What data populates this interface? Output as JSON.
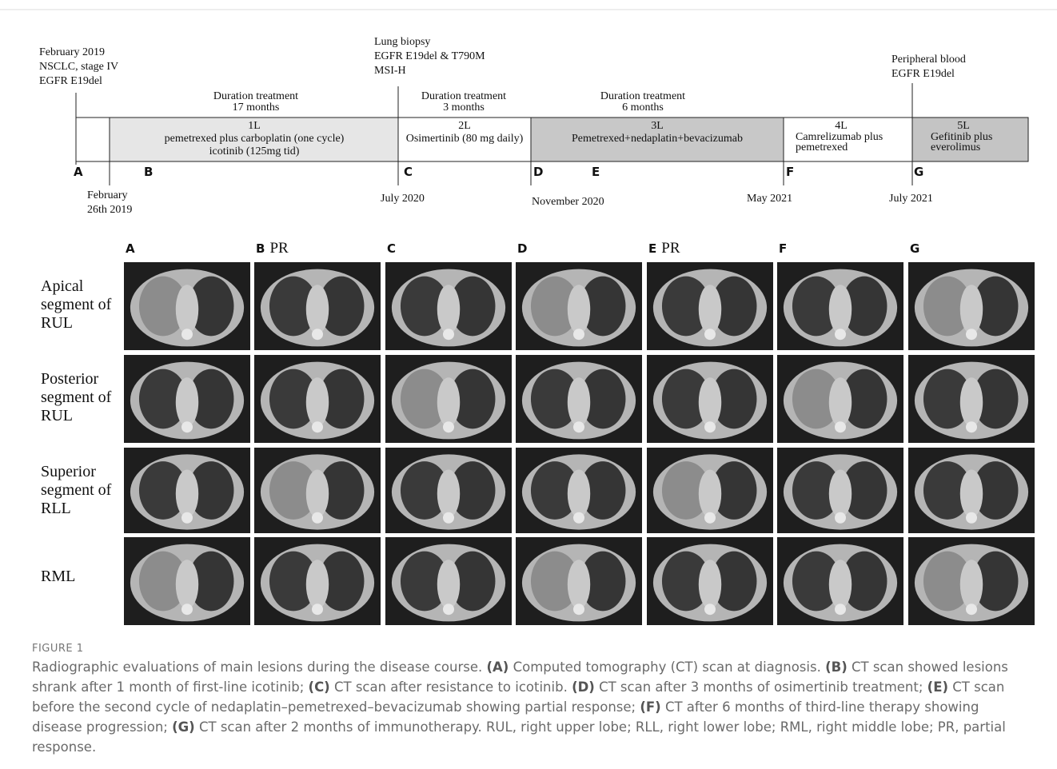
{
  "timeline": {
    "events": [
      {
        "lines": [
          "February 2019",
          "NSCLC, stage IV",
          "EGFR E19del"
        ]
      },
      {
        "lines": [
          "Lung biopsy",
          "EGFR E19del & T790M",
          "MSI-H"
        ]
      },
      {
        "lines": [
          "Peripheral blood",
          "EGFR E19del"
        ]
      }
    ],
    "durations": [
      {
        "lines": [
          "Duration treatment",
          "17 months"
        ]
      },
      {
        "lines": [
          "Duration treatment",
          "3 months"
        ]
      },
      {
        "lines": [
          "Duration treatment",
          "6 months"
        ]
      }
    ],
    "therapy_lines": [
      {
        "label": "1L",
        "lines": [
          "pemetrexed  plus carboplatin (one cycle)",
          "icotinib (125mg tid)"
        ]
      },
      {
        "label": "2L",
        "lines": [
          "Osimertinib (80 mg daily)"
        ]
      },
      {
        "label": "3L",
        "lines": [
          "Pemetrexed+nedaplatin+bevacizumab"
        ]
      },
      {
        "label": "4L",
        "lines": [
          "Camrelizumab plus",
          "pemetrexed"
        ]
      },
      {
        "label": "5L",
        "lines": [
          "Gefitinib plus",
          "everolimus"
        ]
      }
    ],
    "markers": [
      "A",
      "B",
      "C",
      "D",
      "E",
      "F",
      "G"
    ],
    "dates": [
      {
        "lines": [
          "February",
          "26th  2019"
        ]
      },
      {
        "lines": [
          "July  2020"
        ]
      },
      {
        "lines": [
          "November  2020"
        ]
      },
      {
        "lines": [
          "May  2021"
        ]
      },
      {
        "lines": [
          "July  2021"
        ]
      }
    ]
  },
  "scan_grid": {
    "columns": [
      {
        "letter": "A"
      },
      {
        "letter": "B",
        "note": "PR"
      },
      {
        "letter": "C"
      },
      {
        "letter": "D"
      },
      {
        "letter": "E",
        "note": "PR"
      },
      {
        "letter": "F"
      },
      {
        "letter": "G"
      }
    ],
    "rows": [
      {
        "lines": [
          "Apical",
          "segment of",
          "RUL"
        ]
      },
      {
        "lines": [
          "Posterior",
          "segment of",
          "RUL"
        ]
      },
      {
        "lines": [
          "Superior",
          "segment of",
          "RLL"
        ]
      },
      {
        "lines": [
          "RML"
        ]
      }
    ]
  },
  "caption": {
    "label": "FIGURE 1",
    "segments": [
      {
        "text": "Radiographic evaluations of main lesions during the disease course. ",
        "bold": false
      },
      {
        "text": "(A)",
        "bold": true
      },
      {
        "text": " Computed tomography (CT) scan at diagnosis. ",
        "bold": false
      },
      {
        "text": "(B)",
        "bold": true
      },
      {
        "text": " CT scan showed lesions shrank after 1 month of first-line icotinib; ",
        "bold": false
      },
      {
        "text": "(C)",
        "bold": true
      },
      {
        "text": " CT scan after resistance to icotinib. ",
        "bold": false
      },
      {
        "text": "(D)",
        "bold": true
      },
      {
        "text": " CT scan after 3 months of osimertinib treatment; ",
        "bold": false
      },
      {
        "text": "(E)",
        "bold": true
      },
      {
        "text": " CT scan before the second cycle of nedaplatin–pemetrexed–bevacizumab showing partial response; ",
        "bold": false
      },
      {
        "text": "(F)",
        "bold": true
      },
      {
        "text": " CT after 6 months of third-line therapy showing disease progression; ",
        "bold": false
      },
      {
        "text": "(G)",
        "bold": true
      },
      {
        "text": " CT scan after 2 months of immunotherapy. RUL, right upper lobe; RLL, right lower lobe; RML, right middle lobe; PR, partial response.",
        "bold": false
      }
    ]
  }
}
